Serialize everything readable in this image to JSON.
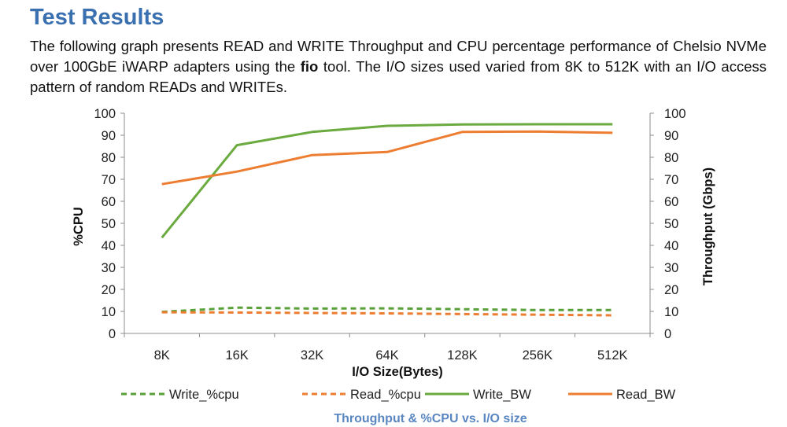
{
  "page": {
    "heading": "Test Results",
    "intro_before_bold": "The following graph presents READ and WRITE Throughput and CPU percentage performance of Chelsio NVMe over 100GbE iWARP adapters using the ",
    "intro_bold": "fio",
    "intro_after_bold": " tool. The I/O sizes used varied from 8K to 512K with an I/O access pattern of random READs and WRITEs."
  },
  "chart_data": {
    "type": "line",
    "title": "Throughput & %CPU vs. I/O size",
    "xlabel": "I/O Size(Bytes)",
    "ylabel_left": "%CPU",
    "ylabel_right": "Throughput (Gbps)",
    "categories": [
      "8K",
      "16K",
      "32K",
      "64K",
      "128K",
      "256K",
      "512K"
    ],
    "ylim_left": [
      0,
      100
    ],
    "ylim_right": [
      0,
      100
    ],
    "yticks": [
      0,
      10,
      20,
      30,
      40,
      50,
      60,
      70,
      80,
      90,
      100
    ],
    "grid": false,
    "legend_position": "bottom",
    "series": [
      {
        "name": "Write_%cpu",
        "axis": "left",
        "style": "dashed",
        "color": "#5aa03a",
        "values": [
          9.8,
          11.7,
          11.3,
          11.4,
          11.0,
          10.6,
          10.6
        ]
      },
      {
        "name": "Read_%cpu",
        "axis": "left",
        "style": "dashed",
        "color": "#ed7d31",
        "values": [
          9.6,
          9.5,
          9.3,
          9.1,
          8.8,
          8.5,
          8.2
        ]
      },
      {
        "name": "Write_BW",
        "axis": "right",
        "style": "solid",
        "color": "#6aaa3e",
        "values": [
          43.5,
          85.5,
          91.5,
          94.3,
          94.9,
          95.0,
          95.0
        ]
      },
      {
        "name": "Read_BW",
        "axis": "right",
        "style": "solid",
        "color": "#ed7d31",
        "values": [
          67.8,
          73.5,
          81.0,
          82.4,
          91.5,
          91.7,
          91.1
        ]
      }
    ]
  }
}
